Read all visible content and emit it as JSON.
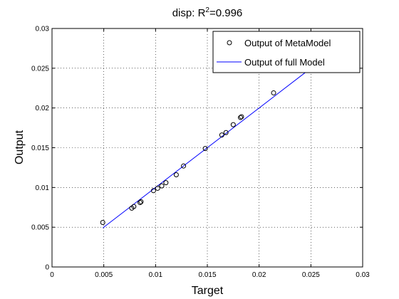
{
  "chart_data": {
    "type": "scatter",
    "title_prefix": "disp: R",
    "title_sup": "2",
    "title_suffix": "=0.996",
    "xlabel": "Target",
    "ylabel": "Output",
    "xlim": [
      0,
      0.03
    ],
    "ylim": [
      0,
      0.03
    ],
    "xticks": [
      0,
      0.005,
      0.01,
      0.015,
      0.02,
      0.025,
      0.03
    ],
    "yticks": [
      0,
      0.005,
      0.01,
      0.015,
      0.02,
      0.025,
      0.03
    ],
    "xtick_labels": [
      "0",
      "0.005",
      "0.01",
      "0.015",
      "0.02",
      "0.025",
      "0.03"
    ],
    "ytick_labels": [
      "0",
      "0.005",
      "0.01",
      "0.015",
      "0.02",
      "0.025",
      "0.03"
    ],
    "grid": true,
    "legend_position": "top-right",
    "series": [
      {
        "name": "Output of MetaModel",
        "kind": "scatter",
        "color": "#000000",
        "x": [
          0.0049,
          0.0077,
          0.0079,
          0.0085,
          0.0086,
          0.0098,
          0.0102,
          0.0106,
          0.011,
          0.012,
          0.0127,
          0.0148,
          0.0164,
          0.0168,
          0.0175,
          0.0182,
          0.0183,
          0.0214
        ],
        "y": [
          0.0056,
          0.0074,
          0.0076,
          0.0081,
          0.0082,
          0.0096,
          0.0099,
          0.0102,
          0.0106,
          0.0116,
          0.0127,
          0.0149,
          0.0166,
          0.0169,
          0.0179,
          0.0188,
          0.0189,
          0.0219
        ]
      },
      {
        "name": "Output of full Model",
        "kind": "line",
        "color": "#0000ff",
        "x": [
          0.0049,
          0.0246
        ],
        "y": [
          0.0049,
          0.0246
        ]
      }
    ]
  }
}
